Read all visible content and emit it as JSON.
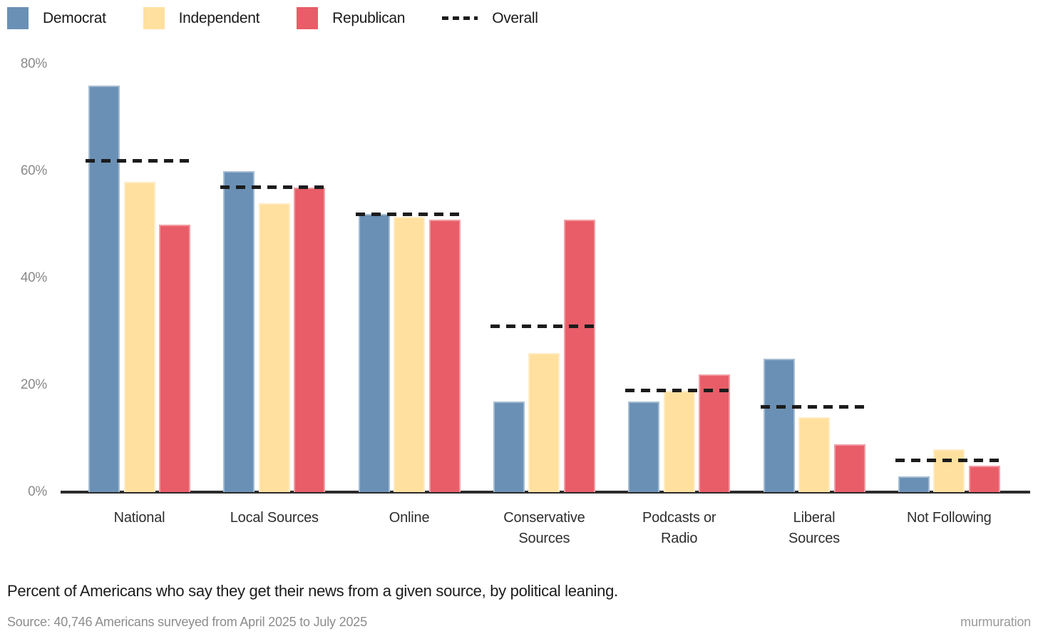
{
  "legend": {
    "items": [
      {
        "label": "Democrat",
        "color": "#6A90B5",
        "type": "swatch"
      },
      {
        "label": "Independent",
        "color": "#FFE09E",
        "type": "swatch"
      },
      {
        "label": "Republican",
        "color": "#E85D68",
        "type": "swatch"
      },
      {
        "label": "Overall",
        "color": "#1C1C1C",
        "type": "dash"
      }
    ]
  },
  "chart_data": {
    "type": "bar",
    "title": "",
    "xlabel": "",
    "ylabel": "",
    "ylim": [
      0,
      80
    ],
    "grid": false,
    "legend_position": "top-left",
    "categories": [
      "National",
      "Local Sources",
      "Online",
      "Conservative Sources",
      "Podcasts or Radio",
      "Liberal Sources",
      "Not Following"
    ],
    "tick_labels": [
      "National",
      "Local Sources",
      "Online",
      "Conservative\nSources",
      "Podcasts or\nRadio",
      "Liberal\nSources",
      "Not Following"
    ],
    "series": [
      {
        "name": "Democrat",
        "color": "#6A90B5",
        "values": [
          76,
          60,
          52,
          17,
          17,
          25,
          3
        ]
      },
      {
        "name": "Independent",
        "color": "#FFE09E",
        "values": [
          58,
          54,
          51.5,
          26,
          19,
          14,
          8
        ]
      },
      {
        "name": "Republican",
        "color": "#E85D68",
        "values": [
          50,
          57,
          51,
          51,
          22,
          9,
          5
        ]
      }
    ],
    "overall": {
      "name": "Overall",
      "color": "#1C1C1C",
      "values": [
        62,
        57,
        52,
        31,
        19,
        16,
        6
      ]
    },
    "yticks": [
      {
        "value": 0,
        "label": "0%"
      },
      {
        "value": 20,
        "label": "20%"
      },
      {
        "value": 40,
        "label": "40%"
      },
      {
        "value": 60,
        "label": "60%"
      },
      {
        "value": 80,
        "label": "80%"
      }
    ]
  },
  "caption": {
    "text": "Percent of Americans who say they get their news from a given source, by political leaning.",
    "source": "Source: 40,746 Americans surveyed from April 2025 to July 2025",
    "brand": "murmuration"
  }
}
